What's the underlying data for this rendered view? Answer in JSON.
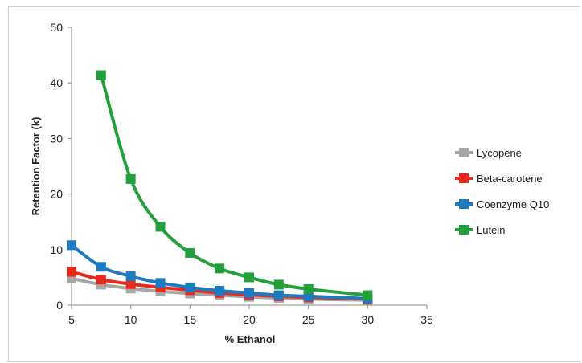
{
  "chart_data": {
    "type": "line",
    "xlabel": "% Ethanol",
    "ylabel": "Retention Factor (k)",
    "xlim": [
      5,
      35
    ],
    "ylim": [
      0,
      50
    ],
    "xticks": [
      5,
      10,
      15,
      20,
      25,
      30,
      35
    ],
    "yticks": [
      0,
      10,
      20,
      30,
      40,
      50
    ],
    "grid": false,
    "legend_position": "right",
    "series": [
      {
        "name": "Lycopene",
        "color": "#a6a6a6",
        "x": [
          5,
          7.5,
          10,
          12.5,
          15,
          17.5,
          20,
          22.5,
          25,
          30
        ],
        "y": [
          4.8,
          3.7,
          3.0,
          2.5,
          2.1,
          1.8,
          1.5,
          1.3,
          1.1,
          0.9
        ]
      },
      {
        "name": "Beta-carotene",
        "color": "#e8291c",
        "x": [
          5,
          7.5,
          10,
          12.5,
          15,
          17.5,
          20,
          22.5,
          25,
          30
        ],
        "y": [
          6.0,
          4.6,
          3.8,
          3.2,
          2.7,
          2.2,
          1.9,
          1.6,
          1.4,
          1.1
        ]
      },
      {
        "name": "Coenzyme Q10",
        "color": "#1f7bc1",
        "x": [
          5,
          7.5,
          10,
          12.5,
          15,
          17.5,
          20,
          22.5,
          25,
          30
        ],
        "y": [
          10.8,
          6.9,
          5.2,
          4.0,
          3.2,
          2.6,
          2.2,
          1.8,
          1.6,
          1.2
        ]
      },
      {
        "name": "Lutein",
        "color": "#23a03c",
        "x": [
          7.5,
          10,
          12.5,
          15,
          17.5,
          20,
          22.5,
          25,
          30
        ],
        "y": [
          41.4,
          22.7,
          14.1,
          9.4,
          6.6,
          5.0,
          3.7,
          2.9,
          1.8
        ]
      }
    ]
  }
}
